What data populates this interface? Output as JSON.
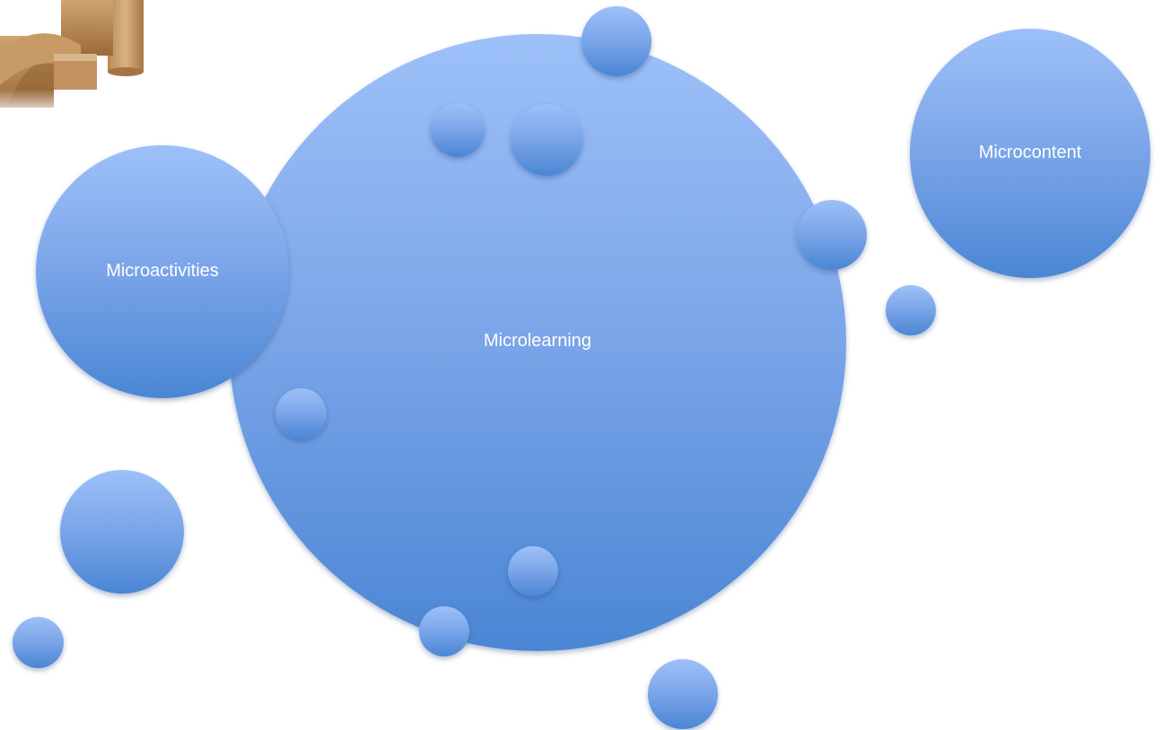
{
  "diagram": {
    "center_label": "Microlearning",
    "left_label": "Microactivities",
    "right_label": "Microcontent"
  },
  "colors": {
    "bubble_top": "#9dc0f8",
    "bubble_bottom": "#4a86d4",
    "label_text": "#ffffff",
    "background": "#ffffff"
  },
  "image": {
    "icon": "wooden-blocks-photo-icon"
  }
}
